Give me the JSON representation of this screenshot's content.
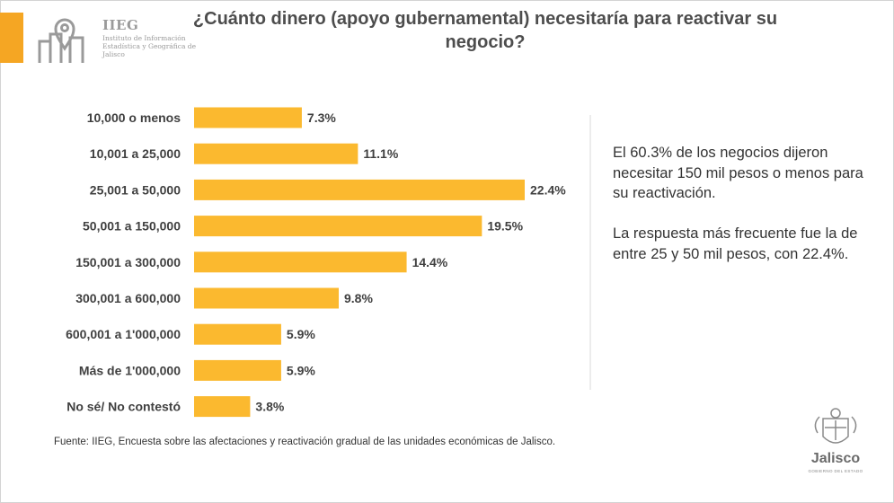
{
  "logo": {
    "name": "IIEG",
    "subtitle": "Instituto de Información Estadística y Geográfica de Jalisco"
  },
  "title": "¿Cuánto dinero (apoyo gubernamental) necesitaría para reactivar su negocio?",
  "colors": {
    "accent": "#f5a623",
    "bar": "#fbb92f"
  },
  "chart_data": {
    "type": "bar",
    "orientation": "horizontal",
    "categories": [
      "10,000 o menos",
      "10,001 a 25,000",
      "25,001 a 50,000",
      "50,001 a 150,000",
      "150,001 a 300,000",
      "300,001 a 600,000",
      "600,001 a 1'000,000",
      "Más de 1'000,000",
      "No sé/ No contestó"
    ],
    "values": [
      7.3,
      11.1,
      22.4,
      19.5,
      14.4,
      9.8,
      5.9,
      5.9,
      3.8
    ],
    "data_labels": [
      "7.3%",
      "11.1%",
      "22.4%",
      "19.5%",
      "14.4%",
      "9.8%",
      "5.9%",
      "5.9%",
      "3.8%"
    ],
    "xlim": [
      0,
      22.4
    ],
    "grid": false,
    "legend": "none"
  },
  "notes": {
    "p1": "El 60.3% de los negocios dijeron necesitar 150 mil pesos o menos para su reactivación.",
    "p2": "La respuesta más frecuente fue la de entre 25 y 50 mil pesos, con 22.4%."
  },
  "source": "Fuente: IIEG, Encuesta sobre las afectaciones y reactivación gradual de las unidades económicas de Jalisco.",
  "footer_logo": {
    "name": "Jalisco",
    "subtitle": "GOBIERNO DEL ESTADO"
  }
}
